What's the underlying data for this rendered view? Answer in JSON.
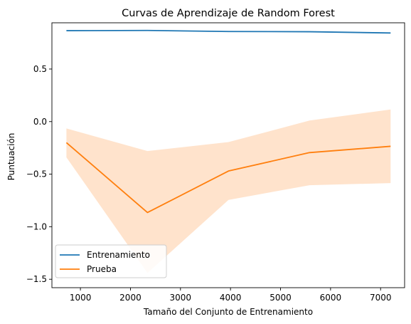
{
  "chart_data": {
    "type": "line",
    "title": "Curvas de Aprendizaje de Random Forest",
    "xlabel": "Tamaño del Conjunto de Entrenamiento",
    "ylabel": "Puntuación",
    "xlim": [
      430,
      7480
    ],
    "ylim": [
      -1.58,
      0.94
    ],
    "xticks": [
      1000,
      2000,
      3000,
      4000,
      5000,
      6000,
      7000
    ],
    "xtick_labels": [
      "1000",
      "2000",
      "3000",
      "4000",
      "5000",
      "6000",
      "7000"
    ],
    "yticks": [
      0.5,
      0.0,
      -0.5,
      -1.0,
      -1.5
    ],
    "ytick_labels": [
      "0.5",
      "0.0",
      "−0.5",
      "−1.0",
      "−1.5"
    ],
    "x": [
      720,
      2340,
      3960,
      5580,
      7200
    ],
    "series": [
      {
        "name": "Entrenamiento",
        "color": "#1f77b4",
        "values": [
          0.865,
          0.867,
          0.857,
          0.855,
          0.843
        ]
      },
      {
        "name": "Prueba",
        "color": "#ff7f0e",
        "values": [
          -0.2,
          -0.865,
          -0.47,
          -0.295,
          -0.235
        ],
        "band_lower": [
          -0.34,
          -1.44,
          -0.745,
          -0.605,
          -0.585
        ],
        "band_upper": [
          -0.065,
          -0.28,
          -0.195,
          0.01,
          0.115
        ],
        "band_color": "#ffe3cc"
      }
    ],
    "legend_position": "lower-left",
    "grid": false
  }
}
